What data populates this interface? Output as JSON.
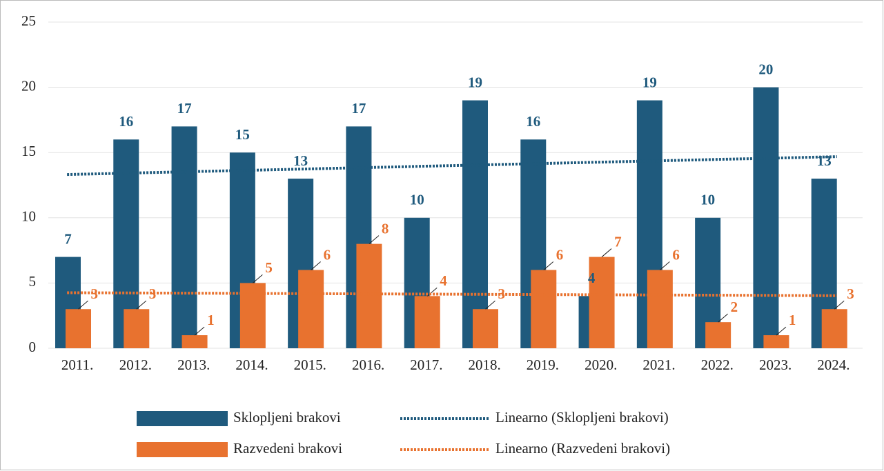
{
  "chart_data": {
    "type": "bar",
    "categories": [
      "2011.",
      "2012.",
      "2013.",
      "2014.",
      "2015.",
      "2016.",
      "2017.",
      "2018.",
      "2019.",
      "2020.",
      "2021.",
      "2022.",
      "2023.",
      "2024."
    ],
    "series": [
      {
        "name": "Sklopljeni brakovi",
        "color": "#1f5a7d",
        "values": [
          7,
          16,
          17,
          15,
          13,
          17,
          10,
          19,
          16,
          4,
          19,
          10,
          20,
          13
        ]
      },
      {
        "name": "Razvedeni brakovi",
        "color": "#e8722f",
        "values": [
          3,
          3,
          1,
          5,
          6,
          8,
          4,
          3,
          6,
          7,
          6,
          2,
          1,
          3
        ]
      }
    ],
    "trendlines": [
      {
        "name": "Linearno (Sklopljeni brakovi)",
        "color": "#1f5a7d",
        "series": 0
      },
      {
        "name": "Linearno (Razvedeni brakovi)",
        "color": "#e8722f",
        "series": 1
      }
    ],
    "ylim": [
      0,
      25
    ],
    "yticks": [
      0,
      5,
      10,
      15,
      20,
      25
    ],
    "grid": true
  }
}
